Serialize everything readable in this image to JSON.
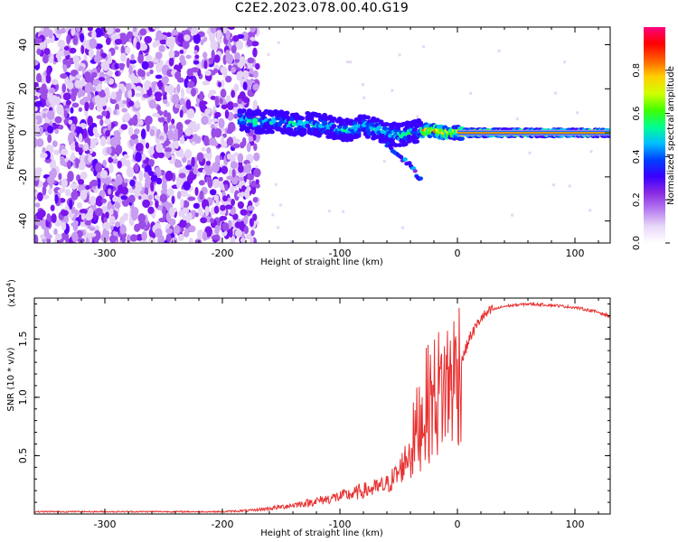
{
  "title": "C2E2.2023.078.00.40.G19",
  "chart_data": [
    {
      "type": "heatmap",
      "xlabel": "Height of straight line (km)",
      "ylabel": "Frequency (Hz)",
      "xlim": [
        -360,
        130
      ],
      "ylim": [
        -50,
        48
      ],
      "xticks": [
        -300,
        -200,
        -100,
        0,
        100
      ],
      "yticks": [
        -40,
        -20,
        0,
        20,
        40
      ],
      "colorbar": {
        "label": "Normalized spectral amplitude",
        "range": [
          0.0,
          1.0
        ],
        "ticks": [
          "0.0",
          "0.2",
          "0.4",
          "0.6",
          "0.8"
        ],
        "colormap": [
          "#ffffff",
          "#e9d8f8",
          "#b77cf0",
          "#8a2be2",
          "#3a00ff",
          "#0040ff",
          "#00bfff",
          "#00ff90",
          "#40ff00",
          "#d0ff00",
          "#ffd000",
          "#ff6000",
          "#ff0000",
          "#ff0080"
        ]
      },
      "ridge": {
        "x": [
          -185,
          -170,
          -155,
          -140,
          -125,
          -110,
          -95,
          -80,
          -65,
          -50,
          -40,
          -30,
          -20,
          -10,
          0,
          40,
          80,
          130
        ],
        "y": [
          6,
          5,
          5,
          4,
          4,
          3,
          1,
          3,
          1,
          -1,
          0,
          1,
          1,
          0,
          0,
          0,
          0,
          0
        ]
      },
      "branch": {
        "x": [
          -60,
          -50,
          -40,
          -30
        ],
        "y": [
          -5,
          -10,
          -15,
          -22
        ]
      },
      "noise_region_x": [
        -360,
        -180
      ]
    },
    {
      "type": "line",
      "xlabel": "Height of straight line (km)",
      "ylabel": "SNR (10 * v/v)",
      "exponent_label": "(x10",
      "exponent_value": "4",
      "xlim": [
        -360,
        130
      ],
      "ylim": [
        0,
        1.85
      ],
      "xticks": [
        -300,
        -200,
        -100,
        0,
        100
      ],
      "yticks": [
        "0.5",
        "1.0",
        "1.5"
      ],
      "color": "#e83030",
      "series": [
        {
          "x": [
            -360,
            -300,
            -250,
            -200,
            -175,
            -150,
            -125,
            -100,
            -90,
            -80,
            -70,
            -60,
            -50,
            -40,
            -35,
            -30,
            -25,
            -20,
            -15,
            -10,
            -5,
            0,
            5,
            10,
            20,
            30,
            40,
            60,
            80,
            100,
            120,
            130
          ],
          "y": [
            0.02,
            0.02,
            0.02,
            0.02,
            0.03,
            0.06,
            0.1,
            0.15,
            0.17,
            0.2,
            0.22,
            0.25,
            0.35,
            0.55,
            0.7,
            0.85,
            0.95,
            1.0,
            1.05,
            1.1,
            1.15,
            1.22,
            1.35,
            1.5,
            1.68,
            1.75,
            1.78,
            1.8,
            1.79,
            1.77,
            1.73,
            1.69
          ]
        }
      ]
    }
  ]
}
